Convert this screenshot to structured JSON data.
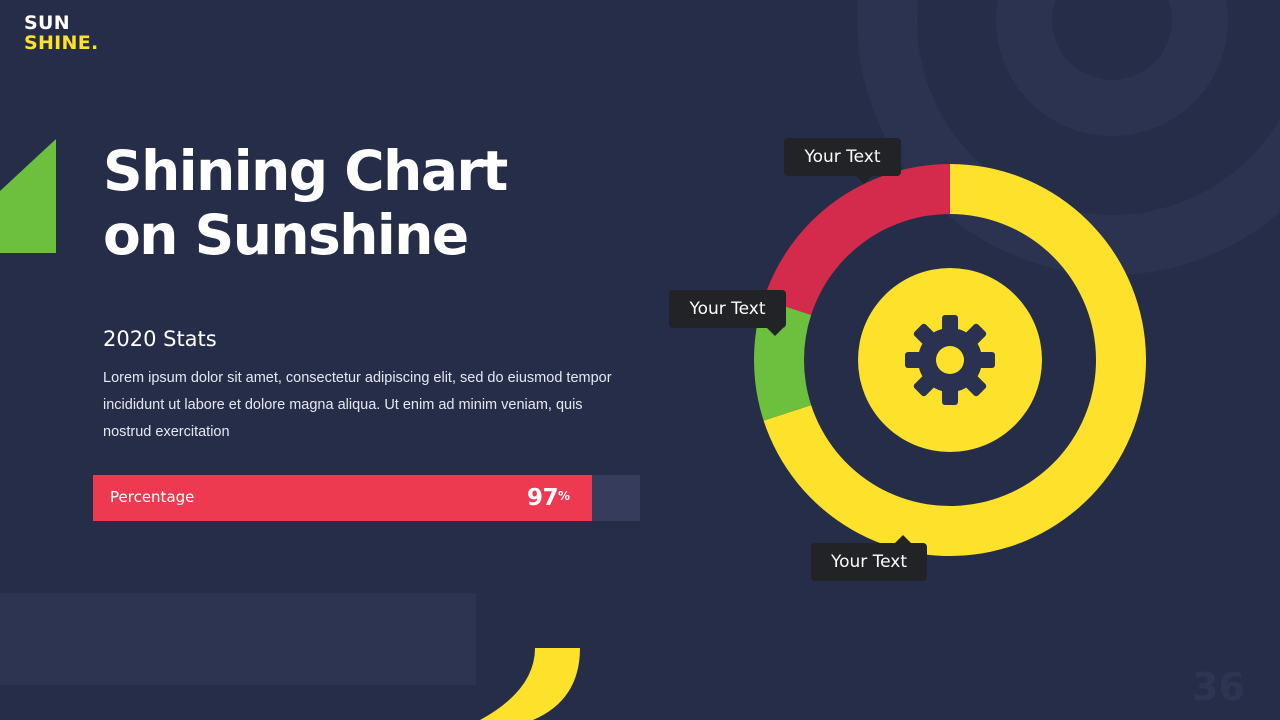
{
  "logo": {
    "line1": "SUN",
    "line2": "SHINE."
  },
  "title": {
    "line1": "Shining Chart",
    "line2": "on Sunshine"
  },
  "stats": {
    "heading": "2020 Stats",
    "body": "Lorem ipsum dolor sit amet, consectetur adipiscing elit, sed do eiusmod tempor incididunt ut labore et dolore magna aliqua. Ut enim ad minim veniam, quis nostrud exercitation"
  },
  "progress": {
    "label": "Percentage",
    "value": 97,
    "value_number": "97",
    "value_unit": "%"
  },
  "chart_data": {
    "type": "pie",
    "donut": true,
    "title": "",
    "center_icon": "gear-icon",
    "slices": [
      {
        "label": "Your Text",
        "value": 70,
        "color": "#fde12a"
      },
      {
        "label": "Your Text",
        "value": 10,
        "color": "#6dbf3e"
      },
      {
        "label": "Your Text",
        "value": 20,
        "color": "#d42a4c"
      }
    ]
  },
  "callouts": {
    "top": "Your Text",
    "left": "Your Text",
    "bottom": "Your Text"
  },
  "slide_number": "36",
  "colors": {
    "background": "#262d48",
    "accent_yellow": "#fde12a",
    "accent_red": "#ee3a50",
    "accent_green": "#6dbf3e",
    "callout_bg": "#222326"
  }
}
